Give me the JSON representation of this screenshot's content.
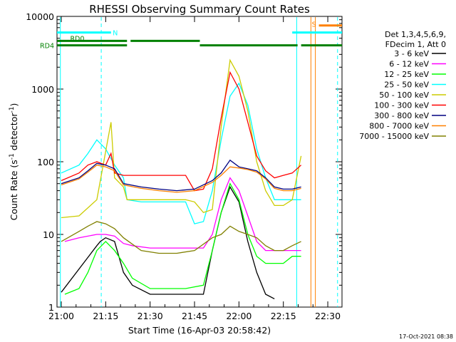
{
  "chart_data": {
    "type": "line",
    "title": "RHESSI Observing Summary Count Rates",
    "xlabel": "Start Time (16-Apr-03 20:58:42)",
    "ylabel_main": "Count Rate (s",
    "ylabel_sup1": "-1",
    "ylabel_mid": " detector",
    "ylabel_sup2": "-1",
    "ylabel_end": ")",
    "footer": "17-Oct-2021 08:38",
    "yscale": "log",
    "xlim": [
      20.976,
      22.58
    ],
    "ylim": [
      1,
      10000
    ],
    "xticks": [
      {
        "v": 21.0,
        "label": "21:00"
      },
      {
        "v": 21.25,
        "label": "21:15"
      },
      {
        "v": 21.5,
        "label": "21:30"
      },
      {
        "v": 21.75,
        "label": "21:45"
      },
      {
        "v": 22.0,
        "label": "22:00"
      },
      {
        "v": 22.25,
        "label": "22:15"
      },
      {
        "v": 22.5,
        "label": "22:30"
      }
    ],
    "yticks": [
      {
        "v": 1,
        "label": "1"
      },
      {
        "v": 10,
        "label": "10"
      },
      {
        "v": 100,
        "label": "100"
      },
      {
        "v": 1000,
        "label": "1000"
      },
      {
        "v": 10000,
        "label": "10000"
      }
    ],
    "legend": {
      "header": [
        "Det 1,3,4,5,6,9,",
        "FDecim 1, Att 0"
      ],
      "placement": "right"
    },
    "series": [
      {
        "name": "3 - 6 keV",
        "color": "#000000",
        "x": [
          21.0,
          21.2,
          21.22,
          21.25,
          21.3,
          21.35,
          21.4,
          21.5,
          21.6,
          21.7,
          21.8,
          21.85,
          21.9,
          21.95,
          22.0,
          22.05,
          22.1,
          22.15,
          22.2
        ],
        "y": [
          1.6,
          7,
          8,
          9,
          8,
          3,
          2,
          1.5,
          1.5,
          1.5,
          1.5,
          6,
          20,
          45,
          28,
          8,
          3,
          1.5,
          1.3
        ]
      },
      {
        "name": "6 - 12 keV",
        "color": "#ff00ff",
        "x": [
          21.02,
          21.1,
          21.2,
          21.25,
          21.3,
          21.35,
          21.4,
          21.5,
          21.6,
          21.7,
          21.8,
          21.85,
          21.9,
          21.95,
          22.0,
          22.05,
          22.1,
          22.15,
          22.2,
          22.25,
          22.3,
          22.35
        ],
        "y": [
          8,
          9,
          10,
          10,
          9.5,
          7.5,
          7,
          6.5,
          6.5,
          6.5,
          6.5,
          10,
          30,
          60,
          40,
          18,
          8,
          6,
          6,
          6,
          6,
          6
        ]
      },
      {
        "name": "12 - 25 keV",
        "color": "#00ff00",
        "x": [
          21.02,
          21.1,
          21.15,
          21.2,
          21.25,
          21.3,
          21.35,
          21.4,
          21.5,
          21.6,
          21.7,
          21.8,
          21.85,
          21.9,
          21.95,
          22.0,
          22.05,
          22.1,
          22.15,
          22.2,
          22.25,
          22.3,
          22.35
        ],
        "y": [
          1.5,
          1.8,
          3,
          6,
          8,
          6,
          4,
          2.5,
          1.8,
          1.8,
          1.8,
          2,
          6,
          20,
          50,
          30,
          10,
          5,
          4,
          4,
          4,
          5,
          5
        ]
      },
      {
        "name": "25 - 50 keV",
        "color": "#00ffff",
        "x": [
          21.0,
          21.1,
          21.15,
          21.2,
          21.25,
          21.3,
          21.35,
          21.37,
          21.45,
          21.55,
          21.65,
          21.7,
          21.75,
          21.8,
          21.85,
          21.9,
          21.95,
          22.0,
          22.05,
          22.1,
          22.15,
          22.2,
          22.25,
          22.3,
          22.35
        ],
        "y": [
          70,
          90,
          130,
          200,
          150,
          90,
          60,
          30,
          28,
          28,
          28,
          28,
          14,
          15,
          40,
          200,
          800,
          1200,
          600,
          150,
          60,
          30,
          30,
          30,
          30
        ]
      },
      {
        "name": "50 - 100 keV",
        "color": "#cccc00",
        "x": [
          21.0,
          21.1,
          21.2,
          21.28,
          21.3,
          21.35,
          21.37,
          21.45,
          21.55,
          21.65,
          21.7,
          21.75,
          21.8,
          21.85,
          21.9,
          21.95,
          22.0,
          22.05,
          22.1,
          22.15,
          22.2,
          22.25,
          22.3,
          22.35
        ],
        "y": [
          17,
          18,
          30,
          350,
          60,
          45,
          30,
          30,
          30,
          30,
          30,
          28,
          20,
          22,
          300,
          2500,
          1500,
          500,
          100,
          40,
          25,
          25,
          30,
          120
        ]
      },
      {
        "name": "100 - 300 keV",
        "color": "#ff0000",
        "x": [
          21.0,
          21.1,
          21.15,
          21.2,
          21.25,
          21.28,
          21.3,
          21.35,
          21.4,
          21.5,
          21.6,
          21.7,
          21.75,
          21.8,
          21.85,
          21.9,
          21.95,
          22.0,
          22.05,
          22.1,
          22.15,
          22.2,
          22.25,
          22.3,
          22.35
        ],
        "y": [
          55,
          70,
          90,
          100,
          90,
          130,
          70,
          65,
          65,
          65,
          65,
          65,
          40,
          42,
          80,
          400,
          1700,
          1000,
          350,
          120,
          75,
          60,
          65,
          70,
          90
        ]
      },
      {
        "name": "300 - 800 keV",
        "color": "#000080",
        "x": [
          21.0,
          21.1,
          21.15,
          21.2,
          21.25,
          21.3,
          21.35,
          21.45,
          21.55,
          21.65,
          21.75,
          21.85,
          21.9,
          21.95,
          22.0,
          22.05,
          22.1,
          22.15,
          22.2,
          22.25,
          22.3,
          22.35
        ],
        "y": [
          50,
          60,
          75,
          95,
          90,
          80,
          50,
          45,
          42,
          40,
          42,
          55,
          70,
          105,
          85,
          80,
          75,
          60,
          45,
          42,
          42,
          45
        ]
      },
      {
        "name": "800 - 7000 keV",
        "color": "#ff8000",
        "x": [
          21.0,
          21.1,
          21.15,
          21.2,
          21.25,
          21.3,
          21.35,
          21.45,
          21.55,
          21.65,
          21.75,
          21.85,
          21.9,
          21.95,
          22.0,
          22.05,
          22.1,
          22.15,
          22.2,
          22.25,
          22.3,
          22.35
        ],
        "y": [
          48,
          58,
          72,
          90,
          85,
          75,
          48,
          43,
          40,
          38,
          40,
          52,
          65,
          85,
          82,
          78,
          72,
          58,
          43,
          40,
          40,
          43
        ]
      },
      {
        "name": "7000 - 15000 keV",
        "color": "#808000",
        "x": [
          21.0,
          21.1,
          21.15,
          21.2,
          21.25,
          21.3,
          21.35,
          21.45,
          21.55,
          21.65,
          21.75,
          21.85,
          21.9,
          21.95,
          22.0,
          22.05,
          22.1,
          22.15,
          22.2,
          22.25,
          22.3,
          22.35
        ],
        "y": [
          8,
          11,
          13,
          15,
          14,
          12,
          9,
          6,
          5.5,
          5.5,
          6,
          9,
          10,
          13,
          11,
          10,
          9,
          7,
          6,
          6,
          7,
          8
        ]
      }
    ],
    "state_bars": [
      {
        "label": "N",
        "color": "#00ffff",
        "y": 6000,
        "segments": [
          [
            20.976,
            21.28
          ],
          [
            22.3,
            22.58
          ]
        ]
      },
      {
        "label": "S",
        "color": "#ff8000",
        "y": 7500,
        "segments": [
          [
            22.45,
            22.58
          ]
        ]
      },
      {
        "label": "RD0",
        "color": "#008000",
        "y": 4600,
        "segments": [
          [
            20.976,
            21.37
          ],
          [
            21.39,
            21.78
          ]
        ]
      },
      {
        "label": "RD4",
        "color": "#008000",
        "y": 4000,
        "segments": [
          [
            20.976,
            21.37
          ],
          [
            21.78,
            22.33
          ],
          [
            22.35,
            22.58
          ]
        ]
      }
    ],
    "vlines": [
      {
        "x": 20.995,
        "color": "#00ffff",
        "dash": false
      },
      {
        "x": 21.225,
        "color": "#00ffff",
        "dash": true
      },
      {
        "x": 22.325,
        "color": "#00ffff",
        "dash": false
      },
      {
        "x": 22.405,
        "color": "#ff8000",
        "dash": false
      },
      {
        "x": 22.43,
        "color": "#ff8000",
        "dash": false
      },
      {
        "x": 22.555,
        "color": "#00ffff",
        "dash": true
      }
    ]
  }
}
